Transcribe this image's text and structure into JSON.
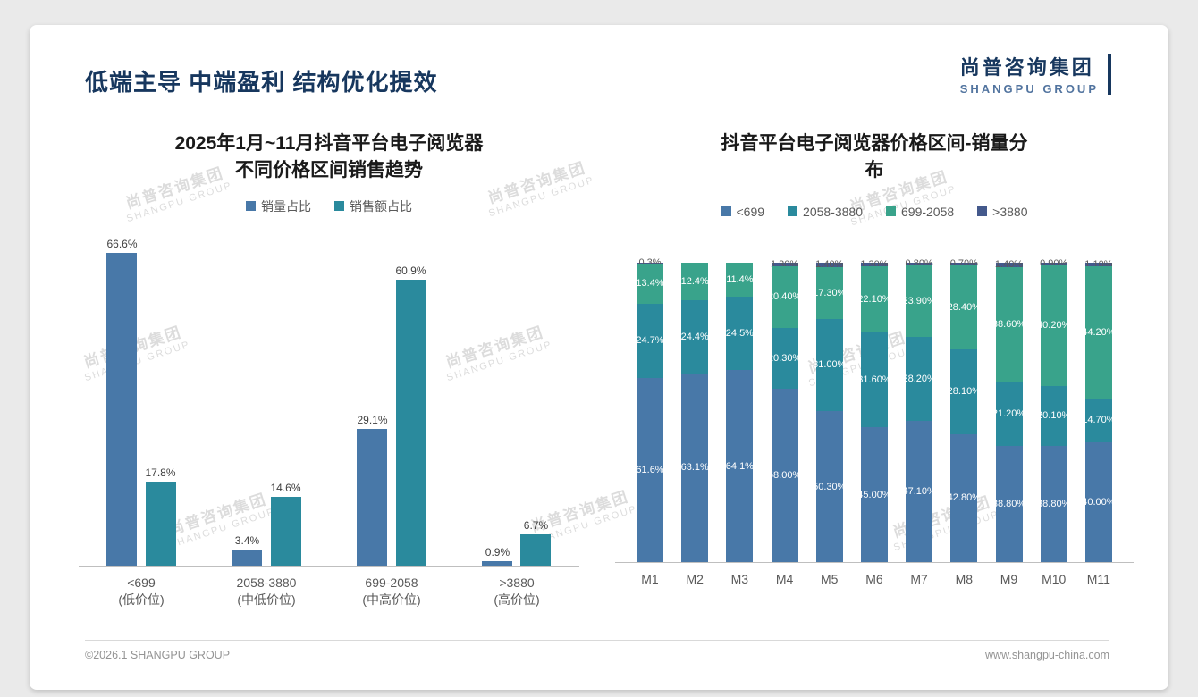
{
  "page": {
    "header_title": "低端主导 中端盈利 结构优化提效",
    "logo": {
      "cn": "尚普咨询集团",
      "en": "SHANGPU GROUP"
    },
    "watermark": {
      "cn": "尚普咨询集团",
      "en": "SHANGPU GROUP"
    },
    "footer": {
      "left": "©2026.1 SHANGPU GROUP",
      "right": "www.shangpu-china.com"
    }
  },
  "colors": {
    "navy": "#17375e",
    "blue": "#4878a8",
    "teal": "#2a8a9d",
    "green": "#39a38b",
    "slate": "#44598c"
  },
  "chart_data": [
    {
      "type": "bar",
      "stacked": false,
      "title_lines": [
        "2025年1月~11月抖音平台电子阅览器",
        "不同价格区间销售趋势"
      ],
      "categories": [
        "<699",
        "2058-3880",
        "699-2058",
        ">3880"
      ],
      "category_sublabels": [
        "(低价位)",
        "(中低价位)",
        "(中高价位)",
        "(高价位)"
      ],
      "series": [
        {
          "name": "销量占比",
          "color": "#4878a8",
          "values": [
            66.6,
            3.4,
            29.1,
            0.9
          ],
          "labels": [
            "66.6%",
            "3.4%",
            "29.1%",
            "0.9%"
          ]
        },
        {
          "name": "销售额占比",
          "color": "#2a8a9d",
          "values": [
            17.8,
            14.6,
            60.9,
            6.7
          ],
          "labels": [
            "17.8%",
            "14.6%",
            "60.9%",
            "6.7%"
          ]
        }
      ],
      "ylabel": "",
      "xlabel": "",
      "ylim": [
        0,
        70
      ],
      "grid": false,
      "legend_position": "top"
    },
    {
      "type": "bar",
      "stacked": true,
      "percent_total": 100,
      "title_lines": [
        "抖音平台电子阅览器价格区间-销量分",
        "布"
      ],
      "categories": [
        "M1",
        "M2",
        "M3",
        "M4",
        "M5",
        "M6",
        "M7",
        "M8",
        "M9",
        "M10",
        "M11"
      ],
      "series": [
        {
          "name": "<699",
          "color": "#4878a8",
          "values": [
            61.6,
            63.1,
            64.1,
            58.0,
            50.3,
            45.0,
            47.1,
            42.8,
            38.8,
            38.8,
            40.0
          ],
          "labels": [
            "61.6%",
            "63.1%",
            "64.1%",
            "58.00%",
            "50.30%",
            "45.00%",
            "47.10%",
            "42.80%",
            "38.80%",
            "38.80%",
            "40.00%"
          ]
        },
        {
          "name": "2058-3880",
          "color": "#2a8a9d",
          "values": [
            24.7,
            24.4,
            24.5,
            20.3,
            31.0,
            31.6,
            28.2,
            28.1,
            21.2,
            20.1,
            14.7
          ],
          "labels": [
            "24.7%",
            "24.4%",
            "24.5%",
            "20.30%",
            "31.00%",
            "31.60%",
            "28.20%",
            "28.10%",
            "21.20%",
            "20.10%",
            "14.70%"
          ]
        },
        {
          "name": "699-2058",
          "color": "#39a38b",
          "values": [
            13.4,
            12.4,
            11.4,
            20.4,
            17.3,
            22.1,
            23.9,
            28.4,
            38.6,
            40.2,
            44.2
          ],
          "labels": [
            "13.4%",
            "12.4%",
            "11.4%",
            "20.40%",
            "17.30%",
            "22.10%",
            "23.90%",
            "28.40%",
            "38.60%",
            "40.20%",
            "44.20%"
          ]
        },
        {
          "name": ">3880",
          "color": "#44598c",
          "label_color": "#595959",
          "values": [
            0.3,
            0.1,
            0.0,
            1.3,
            1.4,
            1.3,
            0.8,
            0.7,
            1.4,
            0.9,
            1.1
          ],
          "labels": [
            "0.3%",
            "",
            "",
            "1.30%",
            "1.40%",
            "1.30%",
            "0.80%",
            "0.70%",
            "1.40%",
            "0.90%",
            "1.10%"
          ]
        }
      ],
      "ylabel": "",
      "xlabel": "",
      "ylim": [
        0,
        100
      ],
      "grid": false,
      "legend_position": "top"
    }
  ]
}
